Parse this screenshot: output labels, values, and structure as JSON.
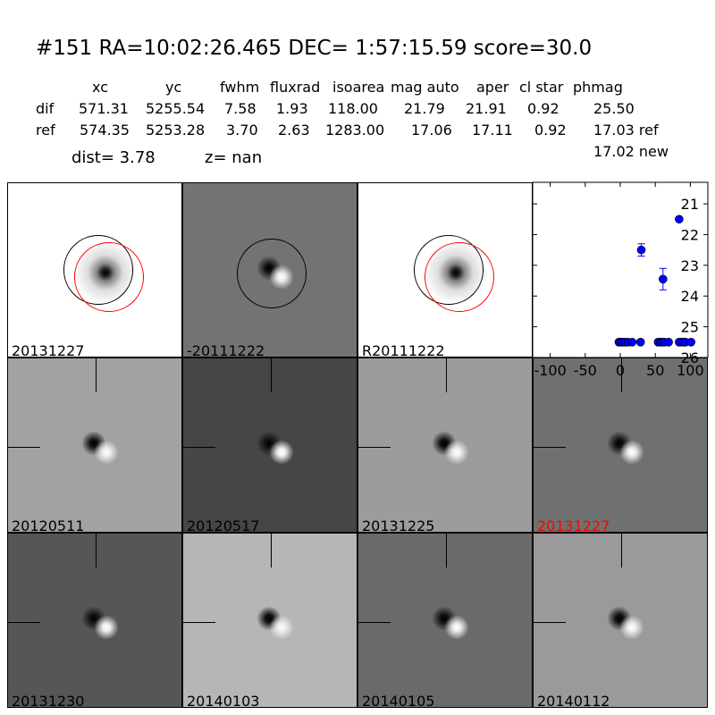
{
  "header": {
    "title": "#151   RA=10:02:26.465 DEC= 1:57:15.59      score=30.0"
  },
  "table": {
    "columns": [
      "xc",
      "yc",
      "fwhm",
      "fluxrad",
      "isoarea",
      "mag auto",
      "aper",
      "cl star",
      "phmag"
    ],
    "rows": [
      {
        "label": "dif",
        "values": [
          "571.31",
          "5255.54",
          "7.58",
          "1.93",
          "118.00",
          "21.79",
          "21.91",
          "0.92",
          "25.50"
        ]
      },
      {
        "label": "ref",
        "values": [
          "574.35",
          "5253.28",
          "3.70",
          "2.63",
          "1283.00",
          "17.06",
          "17.11",
          "0.92",
          "17.03 ref"
        ]
      }
    ],
    "extra": "17.02 new",
    "dist": "dist=  3.78",
    "z": "z=   nan"
  },
  "panels": [
    {
      "label": "20131227",
      "bg": "#ffffff",
      "type": "ref"
    },
    {
      "label": "-20111222",
      "bg": "#737373",
      "type": "diff"
    },
    {
      "label": "R20111222",
      "bg": "#ffffff",
      "type": "ref"
    },
    {
      "label": "20120511",
      "bg": "#a2a2a2",
      "type": "cut"
    },
    {
      "label": "20120517",
      "bg": "#464646",
      "type": "cut"
    },
    {
      "label": "20131225",
      "bg": "#9c9c9c",
      "type": "cut"
    },
    {
      "label": "20131227",
      "bg": "#707070",
      "type": "cut",
      "highlight": "#ff0000"
    },
    {
      "label": "20131230",
      "bg": "#565656",
      "type": "cut"
    },
    {
      "label": "20140103",
      "bg": "#b6b6b6",
      "type": "cut"
    },
    {
      "label": "20140105",
      "bg": "#6a6a6a",
      "type": "cut"
    },
    {
      "label": "20140112",
      "bg": "#9a9a9a",
      "type": "cut"
    }
  ],
  "chart_data": {
    "type": "scatter",
    "title": "",
    "xlabel": "",
    "ylabel": "",
    "xlim": [
      -125,
      125
    ],
    "ylim": [
      26,
      20.3
    ],
    "xticks": [
      "-100",
      "-50",
      "0",
      "50",
      "100"
    ],
    "xtick_values": [
      -100,
      -50,
      0,
      50,
      100
    ],
    "yticks": [
      "21",
      "22",
      "23",
      "24",
      "25",
      "26"
    ],
    "ytick_values": [
      21,
      22,
      23,
      24,
      25,
      26
    ],
    "color": "#0000ff",
    "points": [
      {
        "x": -2,
        "y": 25.5
      },
      {
        "x": 0,
        "y": 25.5
      },
      {
        "x": 2,
        "y": 25.5
      },
      {
        "x": 4,
        "y": 25.5
      },
      {
        "x": 7,
        "y": 25.5
      },
      {
        "x": 11,
        "y": 25.5
      },
      {
        "x": 17,
        "y": 25.5
      },
      {
        "x": 29,
        "y": 25.5
      },
      {
        "x": 54,
        "y": 25.5
      },
      {
        "x": 57,
        "y": 25.5
      },
      {
        "x": 60,
        "y": 25.5
      },
      {
        "x": 63,
        "y": 25.5
      },
      {
        "x": 69,
        "y": 25.5
      },
      {
        "x": 84,
        "y": 25.5
      },
      {
        "x": 87,
        "y": 25.5
      },
      {
        "x": 90,
        "y": 25.5
      },
      {
        "x": 93,
        "y": 25.5
      },
      {
        "x": 101,
        "y": 25.5
      },
      {
        "x": 30,
        "y": 22.5,
        "err": 0.2
      },
      {
        "x": 61,
        "y": 23.45,
        "err": 0.35
      },
      {
        "x": 84,
        "y": 21.5
      }
    ]
  }
}
